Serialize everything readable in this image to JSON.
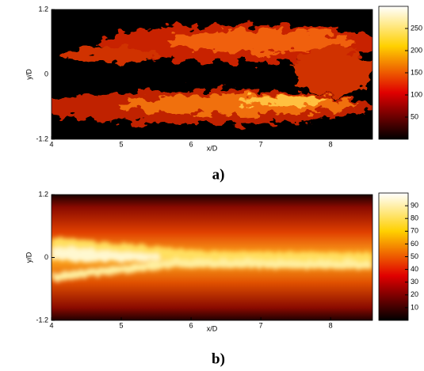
{
  "chart_data": [
    {
      "type": "heatmap",
      "panel_label": "a)",
      "xlabel": "x/D",
      "ylabel": "y/D",
      "xlim": [
        4,
        8.6
      ],
      "xticks": [
        4,
        5,
        6,
        7,
        8
      ],
      "ylim": [
        -1.2,
        1.2
      ],
      "yticks": [
        -1.2,
        0,
        1.2
      ],
      "colormap": "hot",
      "clim": [
        0,
        300
      ],
      "cticks": [
        50,
        100,
        150,
        200,
        250
      ]
    },
    {
      "type": "heatmap",
      "panel_label": "b)",
      "xlabel": "x/D",
      "ylabel": "y/D",
      "xlim": [
        4,
        8.6
      ],
      "xticks": [
        4,
        5,
        6,
        7,
        8
      ],
      "ylim": [
        -1.2,
        1.2
      ],
      "yticks": [
        -1.2,
        0,
        1.2
      ],
      "colormap": "hot",
      "clim": [
        0,
        100
      ],
      "cticks": [
        10,
        20,
        30,
        40,
        50,
        60,
        70,
        80,
        90
      ]
    }
  ]
}
